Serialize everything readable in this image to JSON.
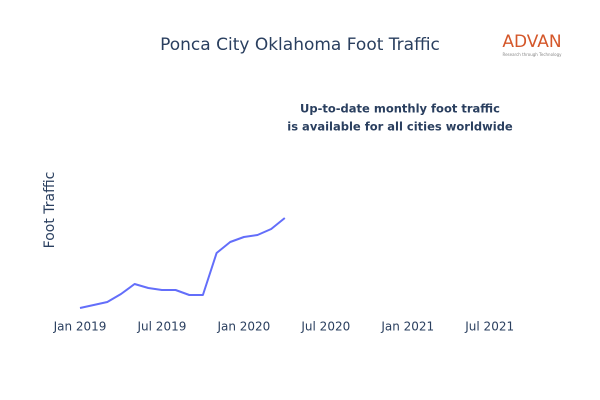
{
  "chart_data": {
    "type": "line",
    "title": "Ponca City Oklahoma Foot Traffic",
    "y_label": "Foot Traffic",
    "annotation": [
      "Up-to-date monthly foot traffic",
      "is available for all cities worldwide"
    ],
    "logo": {
      "text": "ADVAN",
      "tagline": "Research through Technology"
    },
    "x": [
      "2019-01",
      "2019-02",
      "2019-03",
      "2019-04",
      "2019-05",
      "2019-06",
      "2019-07",
      "2019-08",
      "2019-09",
      "2019-10",
      "2019-11",
      "2019-12",
      "2020-01",
      "2020-02",
      "2020-03",
      "2020-04"
    ],
    "series": [
      {
        "name": "Foot Traffic",
        "color": "#636efa",
        "values": [
          22,
          25,
          28,
          36,
          46,
          42,
          40,
          40,
          35,
          35,
          77,
          88,
          93,
          95,
          101,
          112
        ]
      }
    ],
    "xlim": [
      "2019-01",
      "2021-09"
    ],
    "xticks": [
      {
        "value": "2019-01",
        "label": "Jan 2019"
      },
      {
        "value": "2019-07",
        "label": "Jul 2019"
      },
      {
        "value": "2020-01",
        "label": "Jan 2020"
      },
      {
        "value": "2020-07",
        "label": "Jul 2020"
      },
      {
        "value": "2021-01",
        "label": "Jan 2021"
      },
      {
        "value": "2021-07",
        "label": "Jul 2021"
      }
    ],
    "ylim": [
      0,
      140
    ]
  }
}
